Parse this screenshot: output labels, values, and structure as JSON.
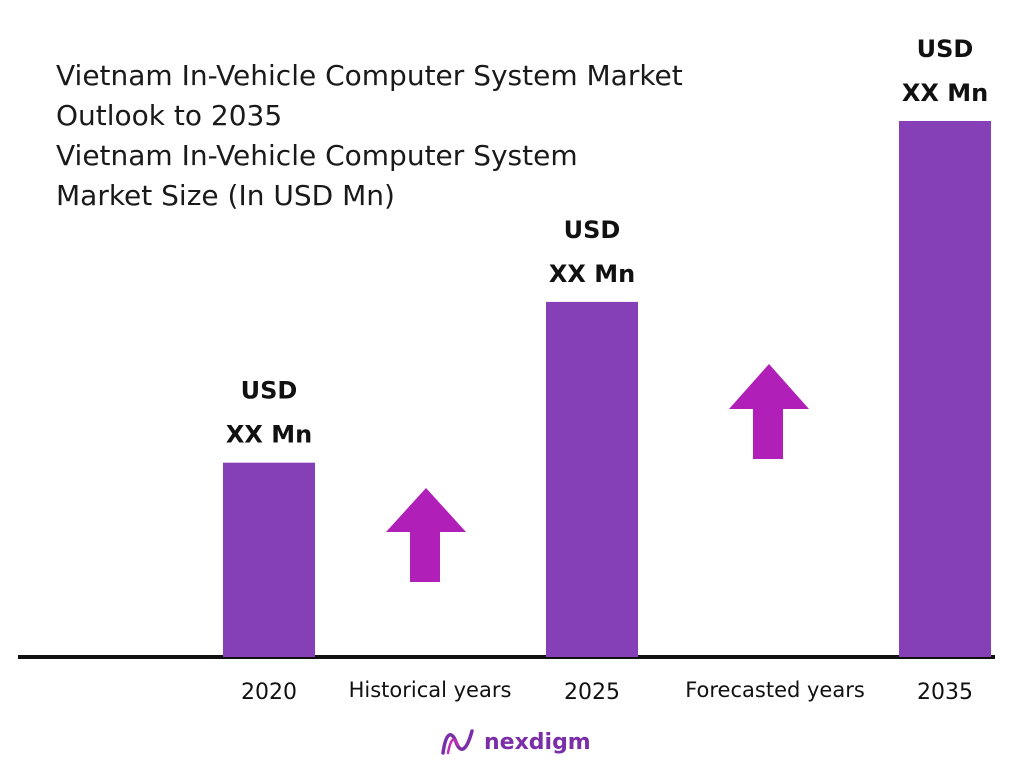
{
  "chart_data": {
    "type": "bar",
    "title": "Vietnam In-Vehicle Computer System Market",
    "title_line2": "Outlook to 2035",
    "subtitle": "Vietnam In-Vehicle Computer System",
    "subtitle_line2": "Market Size (In USD Mn)",
    "categories": [
      "2020",
      "2025",
      "2035"
    ],
    "values": [
      29,
      53,
      80
    ],
    "ylim": [
      0,
      100
    ],
    "data_labels": [
      {
        "line1": "USD",
        "line2": "XX Mn"
      },
      {
        "line1": "USD",
        "line2": "XX Mn"
      },
      {
        "line1": "USD",
        "line2": "XX Mn"
      }
    ],
    "period_labels": [
      "Historical years",
      "Forecasted years"
    ],
    "grid": false,
    "colors": {
      "bar": "#8540b8",
      "arrow": "#b01fb8",
      "axis": "#111111"
    }
  },
  "brand": {
    "name": "nexdigm",
    "icon": "nexdigm-logo-icon"
  }
}
